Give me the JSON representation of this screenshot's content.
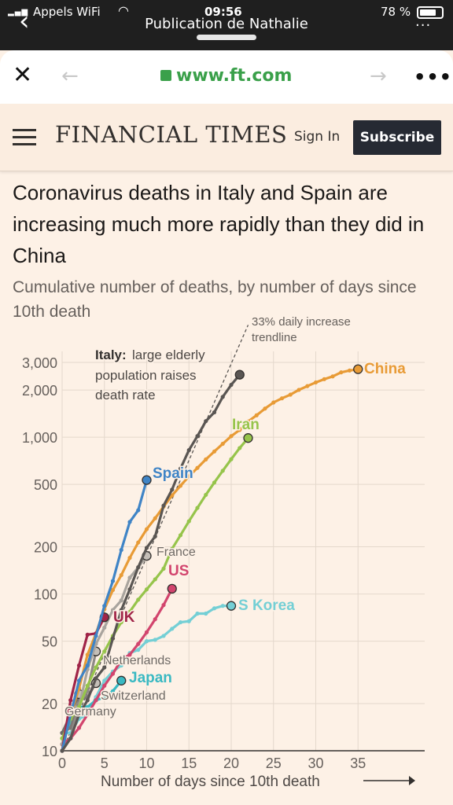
{
  "status_bar": {
    "carrier": "Appels WiFi",
    "time": "09:56",
    "battery": "78 %",
    "page_title": "Publication de Nathalie",
    "signal_icon": "signal-icon",
    "wifi_icon": "wifi-icon",
    "battery_icon": "battery-icon"
  },
  "browser": {
    "url": "www.ft.com",
    "close_icon": "close-icon",
    "back_icon": "arrow-left-icon",
    "forward_icon": "arrow-right-icon",
    "menu_icon": "more-icon",
    "lock_icon": "lock-icon",
    "url_color": "#3aa04a"
  },
  "ft_header": {
    "logo": "FINANCIAL TIMES",
    "sign_in": "Sign In",
    "subscribe": "Subscribe"
  },
  "article": {
    "headline": "Coronavirus deaths in Italy and Spain are increasing much more rapidly than they did in China",
    "subhead": "Cumulative number of deaths, by number of days since 10th death"
  },
  "chart_data": {
    "type": "line",
    "log_scale_y": true,
    "xlabel": "Number of days since 10th death",
    "ylabel": "",
    "xlim": [
      0,
      42
    ],
    "ylim": [
      10,
      3000
    ],
    "x_ticks": [
      0,
      5,
      10,
      15,
      20,
      25,
      30,
      35
    ],
    "y_ticks": [
      10,
      20,
      50,
      100,
      200,
      500,
      1000,
      2000,
      3000
    ],
    "y_tick_labels": [
      "10",
      "20",
      "50",
      "100",
      "200",
      "500",
      "1,000",
      "2,000",
      "3,000"
    ],
    "annotations": {
      "italy_bold": "Italy:",
      "italy_rest": [
        "large elderly",
        "population raises",
        "death rate"
      ],
      "trendline": [
        "33% daily increase",
        "trendline"
      ]
    },
    "series": [
      {
        "name": "Italy",
        "color": "#5a5653",
        "label_visible": false,
        "x": [
          0,
          1,
          2,
          3,
          4,
          5,
          6,
          7,
          8,
          9,
          10,
          11,
          12,
          13,
          14,
          15,
          16,
          17,
          18,
          19,
          20,
          21
        ],
        "y": [
          10,
          12,
          17,
          21,
          29,
          34,
          52,
          79,
          107,
          148,
          197,
          233,
          366,
          463,
          631,
          827,
          1016,
          1266,
          1441,
          1809,
          2158,
          2503
        ]
      },
      {
        "name": "Spain",
        "color": "#3f84c6",
        "x": [
          0,
          1,
          2,
          3,
          4,
          5,
          6,
          7,
          8,
          9,
          10
        ],
        "y": [
          10,
          17,
          28,
          35,
          54,
          84,
          121,
          191,
          288,
          342,
          533
        ]
      },
      {
        "name": "China",
        "color": "#e89b36",
        "x": [
          0,
          1,
          2,
          3,
          4,
          5,
          6,
          7,
          8,
          9,
          10,
          11,
          12,
          13,
          14,
          15,
          16,
          17,
          18,
          19,
          20,
          21,
          22,
          23,
          24,
          25,
          26,
          27,
          28,
          29,
          30,
          31,
          32,
          33,
          34,
          35
        ],
        "y": [
          10,
          17,
          25,
          41,
          56,
          80,
          106,
          132,
          170,
          213,
          259,
          304,
          361,
          425,
          490,
          563,
          637,
          722,
          811,
          908,
          1016,
          1113,
          1259,
          1380,
          1523,
          1665,
          1770,
          1868,
          2004,
          2118,
          2236,
          2345,
          2442,
          2592,
          2663,
          2715
        ]
      },
      {
        "name": "Iran",
        "color": "#96c44b",
        "x": [
          0,
          1,
          2,
          3,
          4,
          5,
          6,
          7,
          8,
          9,
          10,
          11,
          12,
          13,
          14,
          15,
          16,
          17,
          18,
          19,
          20,
          21,
          22
        ],
        "y": [
          12,
          16,
          19,
          26,
          34,
          43,
          54,
          66,
          77,
          92,
          107,
          124,
          145,
          194,
          237,
          291,
          354,
          429,
          514,
          611,
          724,
          853,
          988
        ]
      },
      {
        "name": "France",
        "color": "#a9a49e",
        "x": [
          0,
          1,
          2,
          3,
          4,
          5,
          6,
          7,
          8,
          9,
          10
        ],
        "y": [
          11,
          19,
          19,
          33,
          48,
          61,
          79,
          91,
          127,
          148,
          175
        ]
      },
      {
        "name": "US",
        "color": "#d2456e",
        "x": [
          0,
          1,
          2,
          3,
          4,
          5,
          6,
          7,
          8,
          9,
          10,
          11,
          12,
          13
        ],
        "y": [
          11,
          12,
          14,
          17,
          21,
          26,
          31,
          38,
          41,
          48,
          57,
          69,
          85,
          108
        ]
      },
      {
        "name": "UK",
        "color": "#a02448",
        "x": [
          0,
          1,
          2,
          3,
          4,
          5
        ],
        "y": [
          10,
          21,
          35,
          55,
          56,
          71
        ]
      },
      {
        "name": "S Korea",
        "color": "#74cfd5",
        "x": [
          0,
          1,
          2,
          3,
          4,
          5,
          6,
          7,
          8,
          9,
          10,
          11,
          12,
          13,
          14,
          15,
          16,
          17,
          18,
          19,
          20
        ],
        "y": [
          13,
          13,
          16,
          17,
          22,
          28,
          32,
          35,
          42,
          44,
          50,
          51,
          54,
          60,
          66,
          67,
          75,
          75,
          81,
          84,
          84
        ]
      },
      {
        "name": "Netherlands",
        "color": "#8f8a85",
        "x": [
          0,
          1,
          2,
          3,
          4
        ],
        "y": [
          10,
          12,
          20,
          24,
          43
        ]
      },
      {
        "name": "Japan",
        "color": "#3ab9c2",
        "x": [
          0,
          1,
          2,
          3,
          4,
          5,
          6,
          7
        ],
        "y": [
          12,
          15,
          19,
          19,
          21,
          22,
          24,
          28
        ]
      },
      {
        "name": "Switzerland",
        "color": "#7d7874",
        "x": [
          0,
          1,
          2,
          3,
          4
        ],
        "y": [
          13,
          14,
          21,
          22,
          27
        ]
      },
      {
        "name": "Germany",
        "color": "#6e6a66",
        "x": [
          0,
          1,
          2
        ],
        "y": [
          13,
          17,
          23
        ]
      }
    ],
    "trendline": {
      "x": [
        0,
        22
      ],
      "y": [
        10,
        5200
      ],
      "color": "#5a5653"
    }
  }
}
